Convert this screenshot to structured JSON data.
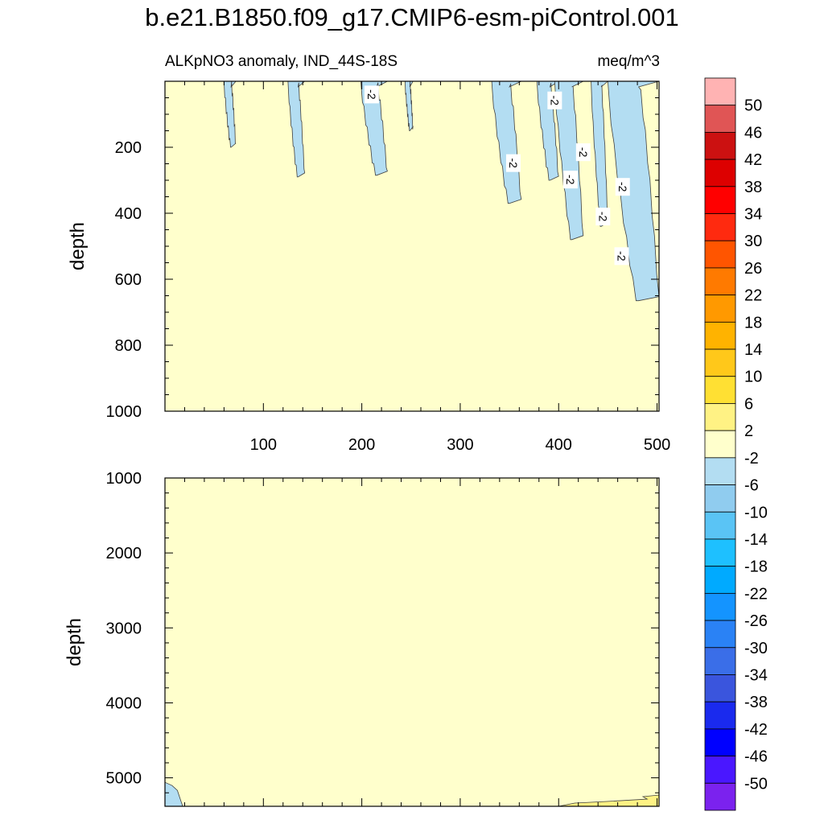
{
  "title": "b.e21.B1850.f09_g17.CMIP6-esm-piControl.001",
  "colors": {
    "neutral_fill": "#ffffcc",
    "neg_fill": "#b3ddf2",
    "pos_fill": "#fff284",
    "contour_line": "#404040",
    "frame": "#000000"
  },
  "colorbar": {
    "labels": [
      "50",
      "46",
      "42",
      "38",
      "34",
      "30",
      "26",
      "22",
      "18",
      "14",
      "10",
      "6",
      "2",
      "-2",
      "-6",
      "-10",
      "-14",
      "-18",
      "-22",
      "-26",
      "-30",
      "-34",
      "-38",
      "-42",
      "-46",
      "-50"
    ],
    "colors": [
      "#ffb3b3",
      "#e05555",
      "#cc1111",
      "#dd0000",
      "#ff0000",
      "#ff2a0f",
      "#ff5500",
      "#ff7a00",
      "#ff9900",
      "#ffb300",
      "#ffc81a",
      "#ffe033",
      "#fff284",
      "#ffffcc",
      "#b3ddf2",
      "#90ccef",
      "#5ac4f5",
      "#1ec0ff",
      "#00aaff",
      "#1494ff",
      "#2a82f5",
      "#3a6ee8",
      "#3a55dd",
      "#1a2aee",
      "#0000ff",
      "#4a17ff",
      "#7b22ee"
    ]
  },
  "chart_data": [
    {
      "type": "contour",
      "panel": "upper",
      "left_title": "ALKpNO3 anomaly, IND_44S-18S",
      "right_title": "meq/m^3",
      "xlabel": "",
      "ylabel": "depth",
      "xlim": [
        0,
        502
      ],
      "ylim": [
        1000,
        0
      ],
      "y_ticks": [
        200,
        400,
        600,
        800,
        1000
      ],
      "x_ticks": [
        100,
        200,
        300,
        400,
        500
      ],
      "x_tick_labels": [
        "100",
        "200",
        "300",
        "400",
        "500"
      ],
      "contour_labels": [
        {
          "text": "-2",
          "x": 210,
          "y": 40
        },
        {
          "text": "-2",
          "x": 396,
          "y": 58
        },
        {
          "text": "-2",
          "x": 425,
          "y": 215
        },
        {
          "text": "-2",
          "x": 354,
          "y": 248
        },
        {
          "text": "-2",
          "x": 412,
          "y": 298
        },
        {
          "text": "-2",
          "x": 465,
          "y": 320
        },
        {
          "text": "-2",
          "x": 445,
          "y": 410
        },
        {
          "text": "-2",
          "x": 464,
          "y": 530
        }
      ],
      "neg_regions": [
        {
          "x": [
            60,
            72
          ],
          "bottom": 200
        },
        {
          "x": [
            125,
            142
          ],
          "bottom": 290
        },
        {
          "x": [
            199,
            226
          ],
          "bottom": 285
        },
        {
          "x": [
            244,
            252
          ],
          "bottom": 150
        },
        {
          "x": [
            332,
            362
          ],
          "bottom": 370
        },
        {
          "x": [
            378,
            400
          ],
          "bottom": 300
        },
        {
          "x": [
            396,
            425
          ],
          "bottom": 480
        },
        {
          "x": [
            433,
            450
          ],
          "bottom": 440
        },
        {
          "x": [
            450,
            502
          ],
          "bottom": 665
        }
      ]
    },
    {
      "type": "contour",
      "panel": "lower",
      "xlabel": "",
      "ylabel": "depth",
      "xlim": [
        0,
        502
      ],
      "ylim": [
        5380,
        1000
      ],
      "y_ticks": [
        1000,
        2000,
        3000,
        4000,
        5000
      ],
      "x_ticks": [
        100,
        200,
        300,
        400,
        500
      ],
      "neg_regions": [
        {
          "x": [
            0,
            18
          ],
          "top": 5060
        }
      ],
      "pos_regions": [
        {
          "x": [
            400,
            502
          ],
          "top": 5230
        }
      ]
    }
  ]
}
